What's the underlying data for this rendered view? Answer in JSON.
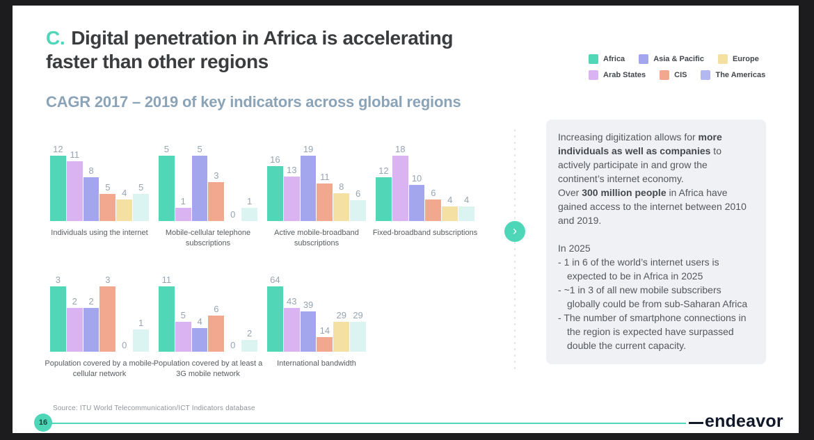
{
  "slide": {
    "section_letter": "C.",
    "title_line1": "Digital penetration in Africa is accelerating",
    "title_line2": "faster than other regions",
    "subtitle": "CAGR 2017 – 2019 of key indicators across global regions",
    "page_number": "16",
    "source": "Source: ITU World Telecommunication/ICT Indicators database",
    "logo_text": "endeavor"
  },
  "colors": {
    "accent_teal": "#4dd6b8",
    "title_text": "#3b3c3e",
    "subtitle_text": "#8ba3b7",
    "panel_background": "#f0f1f4",
    "frame_black": "#1c1c1e"
  },
  "legend": {
    "items": [
      {
        "label": "Africa",
        "color": "#52d6b8"
      },
      {
        "label": "Asia & Pacific",
        "color": "#a3a6ec"
      },
      {
        "label": "Europe",
        "color": "#f5e0a3"
      },
      {
        "label": "Arab States",
        "color": "#d9b3f2"
      },
      {
        "label": "CIS",
        "color": "#f2a78f"
      },
      {
        "label": "The Americas",
        "color": "#b3b8f0"
      }
    ]
  },
  "chart_data": {
    "type": "bar",
    "title": "CAGR 2017 – 2019 of key indicators across global regions",
    "legend_position": "top-right",
    "grid": false,
    "categories": [
      "Africa",
      "Arab States",
      "Asia & Pacific",
      "CIS",
      "Europe",
      "The Americas"
    ],
    "bar_colors": [
      "#52d6b8",
      "#d9b3f2",
      "#a3a6ec",
      "#f2a78f",
      "#f5e0a3",
      "#dbf4f1"
    ],
    "charts": [
      {
        "title": "Individuals using the internet",
        "values": [
          12,
          11,
          8,
          5,
          4,
          5
        ]
      },
      {
        "title": "Mobile-cellular telephone subscriptions",
        "values": [
          5,
          1,
          5,
          3,
          0,
          1
        ]
      },
      {
        "title": "Active mobile-broadband subscriptions",
        "values": [
          16,
          13,
          19,
          11,
          8,
          6
        ]
      },
      {
        "title": "Fixed-broadband subscriptions",
        "values": [
          12,
          18,
          10,
          6,
          4,
          4
        ]
      },
      {
        "title": "Population covered by a mobile-cellular network",
        "values": [
          3,
          2,
          2,
          3,
          0,
          1
        ]
      },
      {
        "title": "Population covered by at least a 3G mobile network",
        "values": [
          11,
          5,
          4,
          6,
          0,
          2
        ]
      },
      {
        "title": "International bandwidth",
        "values": [
          64,
          43,
          39,
          14,
          29,
          29
        ]
      }
    ]
  },
  "side_panel": {
    "blocks": [
      {
        "type": "p",
        "segments": [
          {
            "t": "Increasing digitization allows for "
          },
          {
            "t": "more individuals as well as companies",
            "b": true
          },
          {
            "t": " to actively participate in and grow the continent’s internet economy."
          }
        ]
      },
      {
        "type": "p",
        "segments": [
          {
            "t": "Over "
          },
          {
            "t": "300 million people",
            "b": true
          },
          {
            "t": " in Africa have gained access to the internet between 2010 and 2019."
          }
        ]
      },
      {
        "type": "spacer"
      },
      {
        "type": "p",
        "segments": [
          {
            "t": "In 2025"
          }
        ]
      },
      {
        "type": "bullet",
        "segments": [
          {
            "t": "1 in 6 of the world’s internet users is expected to be in Africa in 2025"
          }
        ]
      },
      {
        "type": "bullet",
        "segments": [
          {
            "t": "~1 in 3 of all new mobile subscribers globally could be from sub-Saharan Africa"
          }
        ]
      },
      {
        "type": "bullet",
        "segments": [
          {
            "t": "The number of smartphone connections in the region is expected have surpassed double the current capacity."
          }
        ]
      }
    ]
  }
}
